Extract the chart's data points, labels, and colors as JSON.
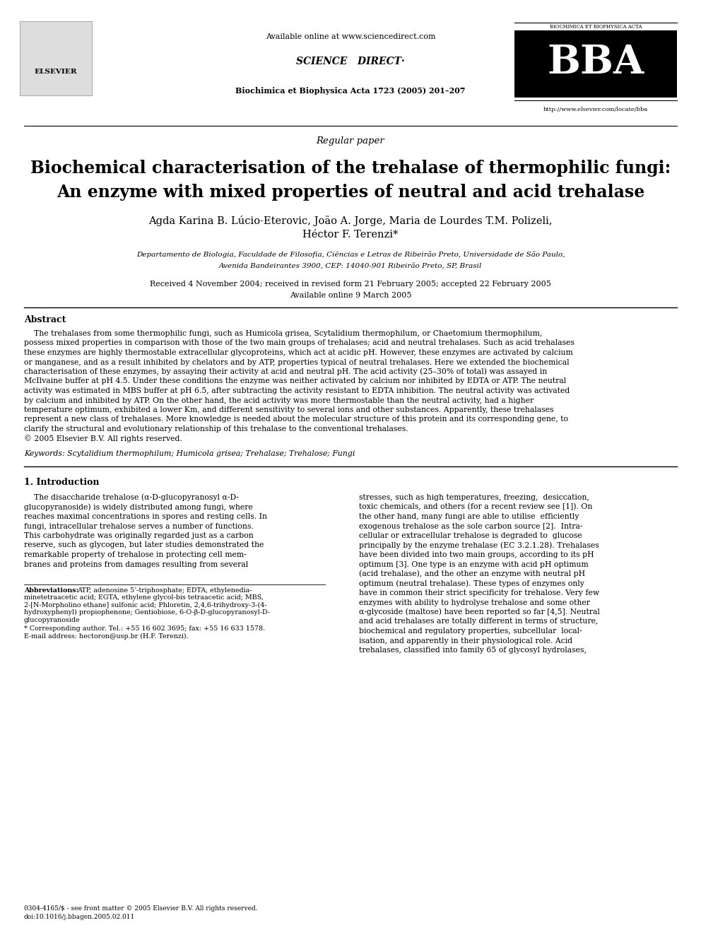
{
  "bg_color": "#ffffff",
  "header_available_online": "Available online at www.sciencedirect.com",
  "journal_name": "Biochimica et Biophysica Acta 1723 (2005) 201–207",
  "bba_url": "http://www.elsevier.com/locate/bba",
  "bba_subtitle": "BIOCHIMICA ET BIOPHYSICA ACTA",
  "paper_type": "Regular paper",
  "title_line1": "Biochemical characterisation of the trehalase of thermophilic fungi:",
  "title_line2": "An enzyme with mixed properties of neutral and acid trehalase",
  "authors": "Agda Karina B. Lúcio-Eterovic, João A. Jorge, Maria de Lourdes T.M. Polizeli,",
  "authors2": "Héctor F. Terenzi*",
  "affiliation1": "Departamento de Biologia, Faculdade de Filosofia, Ciências e Letras de Ribeirão Preto, Universidade de São Paulo,",
  "affiliation2": "Avenida Bandeirantes 3900, CEP: 14040-901 Ribeirão Preto, SP, Brasil",
  "received": "Received 4 November 2004; received in revised form 21 February 2005; accepted 22 February 2005",
  "available": "Available online 9 March 2005",
  "abstract_title": "Abstract",
  "keywords": "Keywords: Scytalidium thermophilum; Humicola grisea; Trehalase; Trehalose; Fungi",
  "section1_title": "1. Introduction",
  "abbreviations_label": "Abbreviations:",
  "abbreviations_text1": "ATP, adenosine 5’-triphosphate; EDTA, ethylenedia-",
  "abbreviations_text2": "minetetraacetic acid; EGTA, ethylene glycol-bis tetraacetic acid; MBS,",
  "abbreviations_text3": "2-[N-Morpholino ethane] sulfonic acid; Phloretin, 2,4,6-trihydroxy-3-(4-",
  "abbreviations_text4": "hydroxyphenyl) propiophenone; Gentiobiose, 6-O-β-D-glucopyranosyl-D-",
  "abbreviations_text5": "glucopyranoside",
  "corresponding": "* Corresponding author. Tel.: +55 16 602 3695; fax: +55 16 633 1578.",
  "email": "E-mail address: hectoron@usp.br (H.F. Terenzi).",
  "footer1": "0304-4165/$ - see front matter © 2005 Elsevier B.V. All rights reserved.",
  "footer2": "doi:10.1016/j.bbagen.2005.02.011",
  "abstract_lines": [
    "    The trehalases from some thermophilic fungi, such as Humicola grisea, Scytalidium thermophilum, or Chaetomium thermophilum,",
    "possess mixed properties in comparison with those of the two main groups of trehalases; acid and neutral trehalases. Such as acid trehalases",
    "these enzymes are highly thermostable extracellular glycoproteins, which act at acidic pH. However, these enzymes are activated by calcium",
    "or manganese, and as a result inhibited by chelators and by ATP, properties typical of neutral trehalases. Here we extended the biochemical",
    "characterisation of these enzymes, by assaying their activity at acid and neutral pH. The acid activity (25–30% of total) was assayed in",
    "McIlvaine buffer at pH 4.5. Under these conditions the enzyme was neither activated by calcium nor inhibited by EDTA or ATP. The neutral",
    "activity was estimated in MBS buffer at pH 6.5, after subtracting the activity resistant to EDTA inhibition. The neutral activity was activated",
    "by calcium and inhibited by ATP. On the other hand, the acid activity was more thermostable than the neutral activity, had a higher",
    "temperature optimum, exhibited a lower Km, and different sensitivity to several ions and other substances. Apparently, these trehalases",
    "represent a new class of trehalases. More knowledge is needed about the molecular structure of this protein and its corresponding gene, to",
    "clarify the structural and evolutionary relationship of this trehalase to the conventional trehalases.",
    "© 2005 Elsevier B.V. All rights reserved."
  ],
  "col1_lines": [
    "    The disaccharide trehalose (α-D-glucopyranosyl α-D-",
    "glucopyranoside) is widely distributed among fungi, where",
    "reaches maximal concentrations in spores and resting cells. In",
    "fungi, intracellular trehalose serves a number of functions.",
    "This carbohydrate was originally regarded just as a carbon",
    "reserve, such as glycogen, but later studies demonstrated the",
    "remarkable property of trehalose in protecting cell mem-",
    "branes and proteins from damages resulting from several"
  ],
  "col2_lines": [
    "stresses, such as high temperatures, freezing,  desiccation,",
    "toxic chemicals, and others (for a recent review see [1]). On",
    "the other hand, many fungi are able to utilise  efficiently",
    "exogenous trehalose as the sole carbon source [2].  Intra-",
    "cellular or extracellular trehalose is degraded to  glucose",
    "principally by the enzyme trehalase (EC 3.2.1.28). Trehalases",
    "have been divided into two main groups, according to its pH",
    "optimum [3]. One type is an enzyme with acid pH optimum",
    "(acid trehalase), and the other an enzyme with neutral pH",
    "optimum (neutral trehalase). These types of enzymes only",
    "have in common their strict specificity for trehalose. Very few",
    "enzymes with ability to hydrolyse trehalose and some other",
    "α-glycoside (maltose) have been reported so far [4,5]. Neutral",
    "and acid trehalases are totally different in terms of structure,",
    "biochemical and regulatory properties, subcellular  local-",
    "isation, and apparently in their physiological role. Acid",
    "trehalases, classified into family 65 of glycosyl hydrolases,"
  ]
}
